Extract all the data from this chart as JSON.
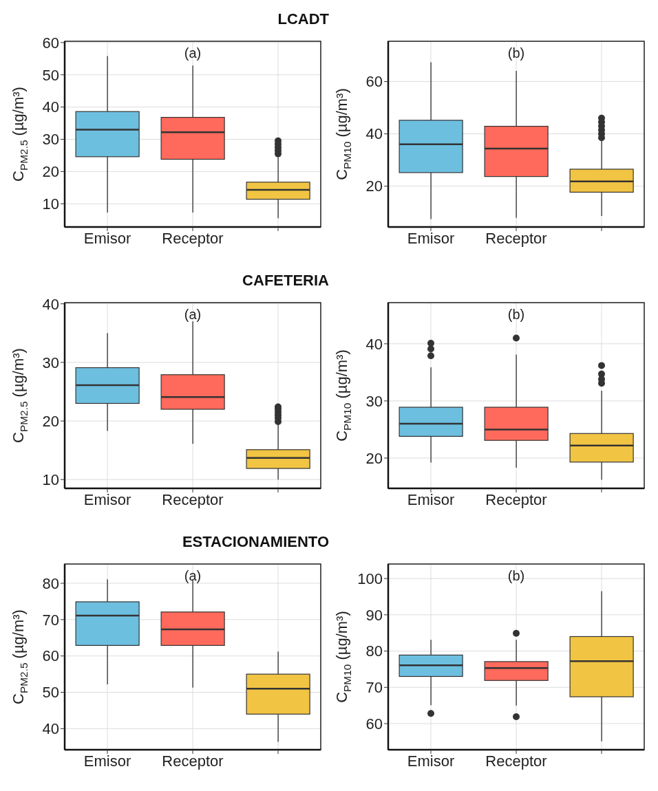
{
  "chart_data": [
    {
      "type": "box",
      "title": "LCADT",
      "annotations": [
        "(a)"
      ],
      "ylabel": "C$_{PM2.5}$ (µg/m³)",
      "categories": [
        "Emisor",
        "Receptor",
        null
      ],
      "colors": [
        "#6dbfe0",
        "#ff6a5c",
        "#f1c443"
      ],
      "grid": true,
      "ylim": [
        2.8,
        60.4
      ],
      "yticks": [
        10,
        20,
        30,
        40,
        50,
        60
      ],
      "boxes": [
        {
          "low": 7.3,
          "q1": 24.6,
          "median": 33.0,
          "q3": 38.6,
          "high": 55.8
        },
        {
          "low": 7.3,
          "q1": 23.8,
          "median": 32.2,
          "q3": 36.8,
          "high": 52.9
        },
        {
          "low": 5.5,
          "q1": 11.4,
          "median": 14.3,
          "q3": 16.7,
          "high": 24.5,
          "outliers": [
            25.5,
            26.5,
            27.5,
            28.5,
            29.5
          ]
        }
      ]
    },
    {
      "type": "box",
      "annotations": [
        "(b)"
      ],
      "ylabel": "C$_{PM10}$ (µg/m³)",
      "categories": [
        "Emisor",
        "Receptor",
        null
      ],
      "colors": [
        "#6dbfe0",
        "#ff6a5c",
        "#f1c443"
      ],
      "grid": true,
      "ylim": [
        4.4,
        75.4
      ],
      "yticks": [
        20,
        40,
        60
      ],
      "boxes": [
        {
          "low": 7.4,
          "q1": 25.2,
          "median": 36.0,
          "q3": 45.2,
          "high": 67.4
        },
        {
          "low": 7.9,
          "q1": 23.7,
          "median": 34.4,
          "q3": 42.9,
          "high": 64.1
        },
        {
          "low": 8.6,
          "q1": 17.7,
          "median": 21.8,
          "q3": 26.5,
          "high": 37.5,
          "outliers": [
            38.5,
            40,
            41.5,
            43,
            44.5,
            46
          ]
        }
      ]
    },
    {
      "type": "box",
      "title": "CAFETERIA",
      "annotations": [
        "(a)"
      ],
      "ylabel": "C$_{PM2.5}$ (µg/m³)",
      "categories": [
        "Emisor",
        "Receptor",
        null
      ],
      "colors": [
        "#6dbfe0",
        "#ff6a5c",
        "#f1c443"
      ],
      "grid": true,
      "ylim": [
        8.5,
        40.2
      ],
      "yticks": [
        10,
        20,
        30,
        40
      ],
      "boxes": [
        {
          "low": 18.3,
          "q1": 23.0,
          "median": 26.1,
          "q3": 29.1,
          "high": 35.0
        },
        {
          "low": 16.1,
          "q1": 22.0,
          "median": 24.1,
          "q3": 27.9,
          "high": 37.0
        },
        {
          "low": 10.0,
          "q1": 11.9,
          "median": 13.7,
          "q3": 15.1,
          "high": 19.5,
          "outliers": [
            19.9,
            20.5,
            21,
            21.5,
            22,
            22.4
          ]
        }
      ]
    },
    {
      "type": "box",
      "annotations": [
        "(b)"
      ],
      "ylabel": "C$_{PM10}$ (µg/m³)",
      "categories": [
        "Emisor",
        "Receptor",
        null
      ],
      "colors": [
        "#6dbfe0",
        "#ff6a5c",
        "#f1c443"
      ],
      "grid": true,
      "ylim": [
        14.7,
        47.2
      ],
      "yticks": [
        20,
        30,
        40
      ],
      "boxes": [
        {
          "low": 19.2,
          "q1": 23.8,
          "median": 26.0,
          "q3": 28.9,
          "high": 35.9,
          "outliers": [
            37.9,
            39.1,
            40.1
          ]
        },
        {
          "low": 18.3,
          "q1": 23.1,
          "median": 25.0,
          "q3": 28.9,
          "high": 38.1,
          "outliers": [
            41.0
          ]
        },
        {
          "low": 16.2,
          "q1": 19.3,
          "median": 22.2,
          "q3": 24.3,
          "high": 31.8,
          "outliers": [
            33.1,
            33.8,
            34.7,
            36.2
          ]
        }
      ]
    },
    {
      "type": "box",
      "title": "ESTACIONAMIENTO",
      "annotations": [
        "(a)"
      ],
      "ylabel": "C$_{PM2.5}$ (µg/m³)",
      "categories": [
        "Emisor",
        "Receptor",
        null
      ],
      "colors": [
        "#6dbfe0",
        "#ff6a5c",
        "#f1c443"
      ],
      "grid": true,
      "ylim": [
        34.2,
        85.3
      ],
      "yticks": [
        40,
        50,
        60,
        70,
        80
      ],
      "boxes": [
        {
          "low": 52.2,
          "q1": 62.9,
          "median": 71.1,
          "q3": 74.9,
          "high": 81.1
        },
        {
          "low": 51.3,
          "q1": 62.9,
          "median": 67.3,
          "q3": 72.1,
          "high": 81.1
        },
        {
          "low": 36.4,
          "q1": 44.0,
          "median": 51.0,
          "q3": 55.0,
          "high": 61.2
        }
      ]
    },
    {
      "type": "box",
      "annotations": [
        "(b)"
      ],
      "ylabel": "C$_{PM10}$ (µg/m³)",
      "categories": [
        "Emisor",
        "Receptor",
        null
      ],
      "colors": [
        "#6dbfe0",
        "#ff6a5c",
        "#f1c443"
      ],
      "grid": true,
      "ylim": [
        52.8,
        104
      ],
      "yticks": [
        60,
        70,
        80,
        90,
        100
      ],
      "boxes": [
        {
          "low": 65.1,
          "q1": 73.0,
          "median": 76.1,
          "q3": 78.9,
          "high": 83.1,
          "outliers": [
            62.8
          ]
        },
        {
          "low": 65.0,
          "q1": 71.9,
          "median": 75.3,
          "q3": 77.1,
          "high": 83.1,
          "outliers": [
            61.9,
            84.9
          ]
        },
        {
          "low": 55.1,
          "q1": 67.4,
          "median": 77.2,
          "q3": 84.0,
          "high": 96.5
        }
      ]
    }
  ]
}
